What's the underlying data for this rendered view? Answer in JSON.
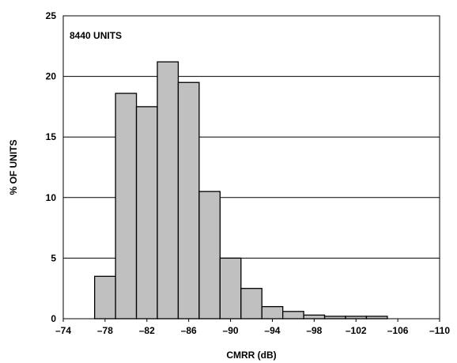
{
  "chart_data": {
    "type": "bar",
    "xlabel": "CMRR (dB)",
    "ylabel": "% OF UNITS",
    "annotation": "8440 UNITS",
    "xlim": [
      -74,
      -110
    ],
    "ylim": [
      0,
      25
    ],
    "x_ticks": [
      -74,
      -78,
      -82,
      -86,
      -90,
      -94,
      -98,
      -102,
      -106,
      -110
    ],
    "x_tick_labels": [
      "–74",
      "–78",
      "–82",
      "–86",
      "–90",
      "–94",
      "–98",
      "–102",
      "–106",
      "–110"
    ],
    "y_ticks": [
      0,
      5,
      10,
      15,
      20,
      25
    ],
    "y_tick_labels": [
      "0",
      "5",
      "10",
      "15",
      "20",
      "25"
    ],
    "bin_width": 2,
    "bin_starts": [
      -77,
      -79,
      -81,
      -83,
      -85,
      -87,
      -89,
      -91,
      -93,
      -95,
      -97,
      -99,
      -101,
      -103
    ],
    "values": [
      3.5,
      18.6,
      17.5,
      21.2,
      19.5,
      10.5,
      5.0,
      2.5,
      1.0,
      0.6,
      0.3,
      0.2,
      0.2,
      0.2
    ],
    "grid": "horizontal",
    "bar_color": "#c0c0c0",
    "edge_color": "#000000"
  }
}
